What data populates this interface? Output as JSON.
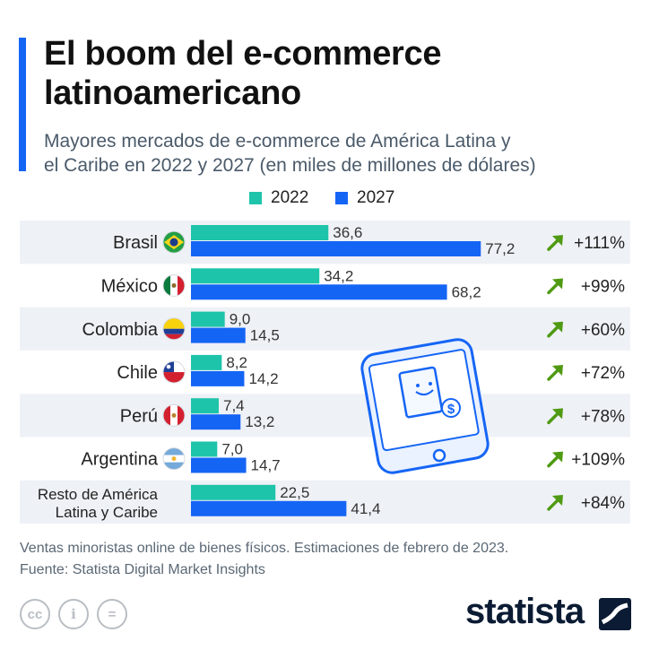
{
  "header": {
    "title_line1": "El boom del e-commerce",
    "title_line2": "latinoamericano",
    "subtitle_line1": "Mayores mercados de e-commerce de América Latina y",
    "subtitle_line2": "el Caribe en 2022 y 2027 (en miles de millones de dólares)"
  },
  "colors": {
    "accent": "#1565f5",
    "series_2022": "#1ec4aa",
    "series_2027": "#1565f5",
    "growth_arrow": "#4f9a12",
    "band": "#eef1f6"
  },
  "chart_data": {
    "type": "bar",
    "orientation": "horizontal",
    "categories": [
      "Brasil",
      "México",
      "Colombia",
      "Chile",
      "Perú",
      "Argentina",
      "Resto de América Latina y Caribe"
    ],
    "category_lines": [
      [
        "Brasil"
      ],
      [
        "México"
      ],
      [
        "Colombia"
      ],
      [
        "Chile"
      ],
      [
        "Perú"
      ],
      [
        "Argentina"
      ],
      [
        "Resto de América",
        "Latina y Caribe"
      ]
    ],
    "series": [
      {
        "name": "2022",
        "values": [
          36.6,
          34.2,
          9.0,
          8.2,
          7.4,
          7.0,
          22.5
        ],
        "labels": [
          "36,6",
          "34,2",
          "9,0",
          "8,2",
          "7,4",
          "7,0",
          "22,5"
        ]
      },
      {
        "name": "2027",
        "values": [
          77.2,
          68.2,
          14.5,
          14.2,
          13.2,
          14.7,
          41.4
        ],
        "labels": [
          "77,2",
          "68,2",
          "14,5",
          "14,2",
          "13,2",
          "14,7",
          "41,4"
        ]
      }
    ],
    "growth": [
      "+111%",
      "+99%",
      "+60%",
      "+72%",
      "+78%",
      "+109%",
      "+84%"
    ],
    "flags": [
      "brazil-flag",
      "mexico-flag",
      "colombia-flag",
      "chile-flag",
      "peru-flag",
      "argentina-flag",
      null
    ],
    "xlim": [
      0,
      80
    ],
    "legend_position": "top-center",
    "grid": false
  },
  "footer": {
    "note": "Ventas minoristas online de bienes físicos. Estimaciones de febrero de 2023.",
    "source": "Fuente: Statista Digital Market Insights",
    "logo": "statista",
    "cc_labels": [
      "cc",
      "i",
      "="
    ]
  }
}
